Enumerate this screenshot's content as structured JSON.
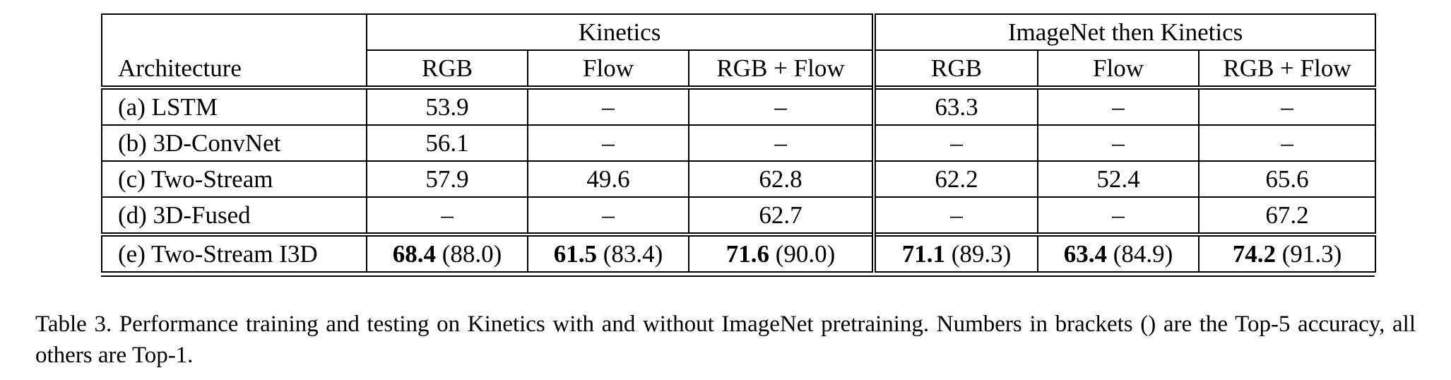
{
  "table": {
    "group_headers": [
      "Kinetics",
      "ImageNet then Kinetics"
    ],
    "row_header_label": "Architecture",
    "sub_headers": [
      "RGB",
      "Flow",
      "RGB + Flow",
      "RGB",
      "Flow",
      "RGB + Flow"
    ],
    "rows": [
      {
        "name": "(a) LSTM",
        "cells": [
          {
            "v": "53.9",
            "p": ""
          },
          {
            "v": "–",
            "p": ""
          },
          {
            "v": "–",
            "p": ""
          },
          {
            "v": "63.3",
            "p": ""
          },
          {
            "v": "–",
            "p": ""
          },
          {
            "v": "–",
            "p": ""
          }
        ]
      },
      {
        "name": "(b) 3D-ConvNet",
        "cells": [
          {
            "v": "56.1",
            "p": ""
          },
          {
            "v": "–",
            "p": ""
          },
          {
            "v": "–",
            "p": ""
          },
          {
            "v": "–",
            "p": ""
          },
          {
            "v": "–",
            "p": ""
          },
          {
            "v": "–",
            "p": ""
          }
        ]
      },
      {
        "name": "(c) Two-Stream",
        "cells": [
          {
            "v": "57.9",
            "p": ""
          },
          {
            "v": "49.6",
            "p": ""
          },
          {
            "v": "62.8",
            "p": ""
          },
          {
            "v": "62.2",
            "p": ""
          },
          {
            "v": "52.4",
            "p": ""
          },
          {
            "v": "65.6",
            "p": ""
          }
        ]
      },
      {
        "name": "(d) 3D-Fused",
        "cells": [
          {
            "v": "–",
            "p": ""
          },
          {
            "v": "–",
            "p": ""
          },
          {
            "v": "62.7",
            "p": ""
          },
          {
            "v": "–",
            "p": ""
          },
          {
            "v": "–",
            "p": ""
          },
          {
            "v": "67.2",
            "p": ""
          }
        ]
      },
      {
        "name": "(e) Two-Stream I3D",
        "highlight": true,
        "cells": [
          {
            "v": "68.4",
            "p": "(88.0)"
          },
          {
            "v": "61.5",
            "p": "(83.4)"
          },
          {
            "v": "71.6",
            "p": "(90.0)"
          },
          {
            "v": "71.1",
            "p": "(89.3)"
          },
          {
            "v": "63.4",
            "p": "(84.9)"
          },
          {
            "v": "74.2",
            "p": "(91.3)"
          }
        ]
      }
    ]
  },
  "caption": {
    "text": "Table 3. Performance training and testing on Kinetics with and without ImageNet pretraining.  Numbers in brackets () are the Top-5 accuracy, all others are Top-1."
  }
}
